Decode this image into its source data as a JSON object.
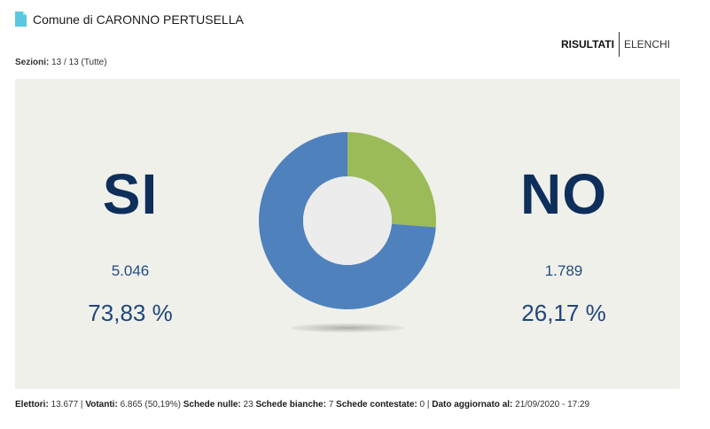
{
  "header": {
    "title": "Comune di CARONNO PERTUSELLA",
    "icon": "document-icon"
  },
  "tabs": [
    {
      "label": "RISULTATI",
      "active": true
    },
    {
      "label": "ELENCHI",
      "active": false
    }
  ],
  "sezioni": {
    "label": "Sezioni:",
    "value": "13 / 13 (Tutte)"
  },
  "results": {
    "si": {
      "label": "SI",
      "votes": "5.046",
      "percent": "73,83 %",
      "color": "#4f81bd"
    },
    "no": {
      "label": "NO",
      "votes": "1.789",
      "percent": "26,17 %",
      "color": "#9bbb59"
    }
  },
  "chart_data": {
    "type": "pie",
    "labels": [
      "SI",
      "NO"
    ],
    "values": [
      73.83,
      26.17
    ],
    "colors": [
      "#4f81bd",
      "#9bbb59"
    ],
    "title": "",
    "donut": true
  },
  "footer": {
    "elettori_label": "Elettori:",
    "elettori_value": "13.677",
    "votanti_label": "Votanti:",
    "votanti_value": "6.865 (50,19%)",
    "nulle_label": "Schede nulle:",
    "nulle_value": "23",
    "bianche_label": "Schede bianche:",
    "bianche_value": "7",
    "contestate_label": "Schede contestate:",
    "contestate_value": "0",
    "aggiornato_label": "Dato aggiornato al:",
    "aggiornato_value": "21/09/2020 - 17:29"
  }
}
